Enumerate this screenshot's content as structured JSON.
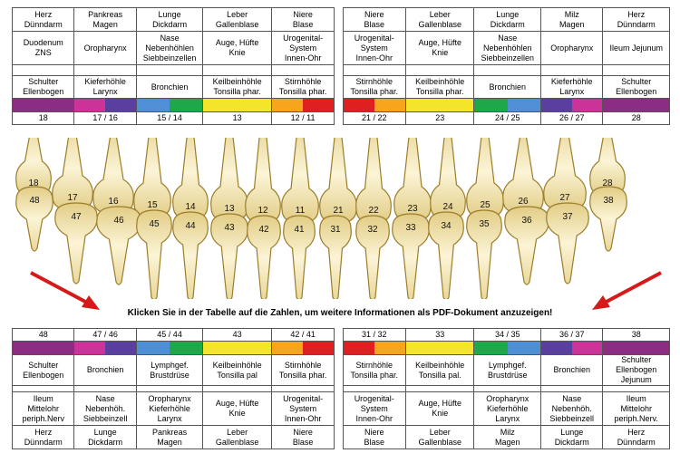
{
  "colors": {
    "purple": "#8b2d82",
    "magenta": "#cc3399",
    "indigo": "#5a3fa0",
    "blue": "#4f8fd6",
    "green": "#1fa84a",
    "yellow": "#f5e52a",
    "orange": "#f7a51c",
    "red": "#e02020",
    "arrow_red": "#d61a1a"
  },
  "top": {
    "organs1": [
      [
        "Herz",
        "Dünndarm"
      ],
      [
        "Pankreas",
        "Magen"
      ],
      [
        "Lunge",
        "Dickdarm"
      ],
      [
        "Leber",
        "Gallenblase"
      ],
      [
        "Niere",
        "Blase"
      ],
      [
        "Niere",
        "Blase"
      ],
      [
        "Leber",
        "Gallenblase"
      ],
      [
        "Lunge",
        "Dickdarm"
      ],
      [
        "Milz",
        "Magen"
      ],
      [
        "Herz",
        "Dünndarm"
      ]
    ],
    "organs2": [
      [
        "Duodenum",
        "ZNS"
      ],
      [
        "Oropharynx"
      ],
      [
        "Nase",
        "Nebenhöhlen",
        "Siebbeinzellen"
      ],
      [
        "Auge, Hüfte",
        "Knie"
      ],
      [
        "Urogenital-",
        "System",
        "Innen-Ohr"
      ],
      [
        "Urogenital-",
        "System",
        "Innen-Ohr"
      ],
      [
        "Auge, Hüfte",
        "Knie"
      ],
      [
        "Nase",
        "Nebenhöhlen",
        "Siebbeinzellen"
      ],
      [
        "Oropharynx"
      ],
      [
        "Ileum Jejunum"
      ]
    ],
    "organs3": [
      [
        "Schulter",
        "Ellenbogen"
      ],
      [
        "Kieferhöhle",
        "Larynx"
      ],
      [
        "Bronchien"
      ],
      [
        "Keilbeinhöhle",
        "Tonsilla phar."
      ],
      [
        "Stirnhöhle",
        "Tonsilla phar."
      ],
      [
        "Stirnhöhle",
        "Tonsilla phar."
      ],
      [
        "Keilbeinhöhle",
        "Tonsilla phar."
      ],
      [
        "Bronchien"
      ],
      [
        "Kieferhöhle",
        "Larynx"
      ],
      [
        "Schulter",
        "Ellenbogen"
      ]
    ],
    "colorbar": [
      [
        "purple"
      ],
      [
        "magenta",
        "indigo"
      ],
      [
        "blue",
        "green"
      ],
      [
        "yellow"
      ],
      [
        "orange",
        "red"
      ],
      [
        "red",
        "orange"
      ],
      [
        "yellow"
      ],
      [
        "green",
        "blue"
      ],
      [
        "indigo",
        "magenta"
      ],
      [
        "purple"
      ]
    ],
    "numbers": [
      "18",
      "17 / 16",
      "15 / 14",
      "13",
      "12 / 11",
      "21 / 22",
      "23",
      "24 / 25",
      "26 / 27",
      "28"
    ]
  },
  "teeth": {
    "upper": [
      "18",
      "17",
      "16",
      "15",
      "14",
      "13",
      "12",
      "11",
      "21",
      "22",
      "23",
      "24",
      "25",
      "26",
      "27",
      "28"
    ],
    "lower": [
      "48",
      "47",
      "46",
      "45",
      "44",
      "43",
      "42",
      "41",
      "31",
      "32",
      "33",
      "34",
      "35",
      "36",
      "37",
      "38"
    ]
  },
  "banner": "Klicken Sie in der Tabelle auf die Zahlen, um weitere Informationen als PDF-Dokument anzuzeigen!",
  "bottom": {
    "numbers": [
      "48",
      "47 / 46",
      "45 / 44",
      "43",
      "42 / 41",
      "31 / 32",
      "33",
      "34 / 35",
      "36 / 37",
      "38"
    ],
    "colorbar": [
      [
        "purple"
      ],
      [
        "magenta",
        "indigo"
      ],
      [
        "blue",
        "green"
      ],
      [
        "yellow"
      ],
      [
        "orange",
        "red"
      ],
      [
        "red",
        "orange"
      ],
      [
        "yellow"
      ],
      [
        "green",
        "blue"
      ],
      [
        "indigo",
        "magenta"
      ],
      [
        "purple"
      ]
    ],
    "organs3": [
      [
        "Schulter",
        "Ellenbogen"
      ],
      [
        "Bronchien"
      ],
      [
        "Lymphgef.",
        "Brustdrüse"
      ],
      [
        "Keilbeinhöhle",
        "Tonsilla pal"
      ],
      [
        "Stirnhöhle",
        "Tonsilla phar."
      ],
      [
        "Stirnhöhle",
        "Tonsilla phar."
      ],
      [
        "Keilbeinhöhle",
        "Tonsilla pal."
      ],
      [
        "Lymphgef.",
        "Brustdrüse"
      ],
      [
        "Bronchien"
      ],
      [
        "Schulter",
        "Ellenbogen",
        "Jejunum"
      ]
    ],
    "organs2": [
      [
        "Ileum",
        "Mittelohr",
        "periph.Nerv"
      ],
      [
        "Nase",
        "Nebenhöh.",
        "Siebbeinzell"
      ],
      [
        "Oropharynx",
        "Kieferhöhle",
        "Larynx"
      ],
      [
        "Auge, Hüfte",
        "Knie"
      ],
      [
        "Urogenital-",
        "System",
        "Innen-Ohr"
      ],
      [
        "Urogenital-",
        "System",
        "Innen-Ohr"
      ],
      [
        "Auge, Hüfte",
        "Knie"
      ],
      [
        "Oropharynx",
        "Kieferhöhle",
        "Larynx"
      ],
      [
        "Nase",
        "Nebenhöh.",
        "Siebbeinzell"
      ],
      [
        "Ileum",
        "Mittelohr",
        "periph.Nerv."
      ]
    ],
    "organs1": [
      [
        "Herz",
        "Dünndarm"
      ],
      [
        "Lunge",
        "Dickdarm"
      ],
      [
        "Pankreas",
        "Magen"
      ],
      [
        "Leber",
        "Gallenblase"
      ],
      [
        "Niere",
        "Blase"
      ],
      [
        "Niere",
        "Blase"
      ],
      [
        "Leber",
        "Gallenblase"
      ],
      [
        "Milz",
        "Magen"
      ],
      [
        "Lunge",
        "Dickdarm"
      ],
      [
        "Herz",
        "Dünndarm"
      ]
    ]
  }
}
